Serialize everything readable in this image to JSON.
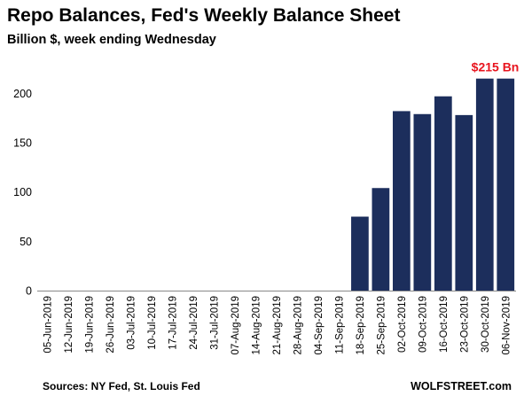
{
  "chart_data": {
    "type": "bar",
    "title": "Repo Balances, Fed's Weekly Balance Sheet",
    "subtitle": "Billion $, week ending Wednesday",
    "categories": [
      "05-Jun-2019",
      "12-Jun-2019",
      "19-Jun-2019",
      "26-Jun-2019",
      "03-Jul-2019",
      "10-Jul-2019",
      "17-Jul-2019",
      "24-Jul-2019",
      "31-Jul-2019",
      "07-Aug-2019",
      "14-Aug-2019",
      "21-Aug-2019",
      "28-Aug-2019",
      "04-Sep-2019",
      "11-Sep-2019",
      "18-Sep-2019",
      "25-Sep-2019",
      "02-Oct-2019",
      "09-Oct-2019",
      "16-Oct-2019",
      "23-Oct-2019",
      "30-Oct-2019",
      "06-Nov-2019"
    ],
    "values": [
      0,
      0,
      0,
      0,
      0,
      0,
      0,
      0,
      0,
      0,
      0,
      0,
      0,
      0,
      0,
      75,
      104,
      182,
      179,
      197,
      178,
      215,
      215
    ],
    "ylim": [
      0,
      230
    ],
    "yticks": [
      0,
      50,
      100,
      150,
      200
    ],
    "grid": false,
    "bar_color": "#1c2e5c",
    "annotation": {
      "text": "$215 Bn",
      "color": "#e8141e",
      "category_index": 22
    }
  },
  "footer": {
    "source": "Sources: NY Fed, St. Louis Fed",
    "credit": "WOLFSTREET.com"
  }
}
